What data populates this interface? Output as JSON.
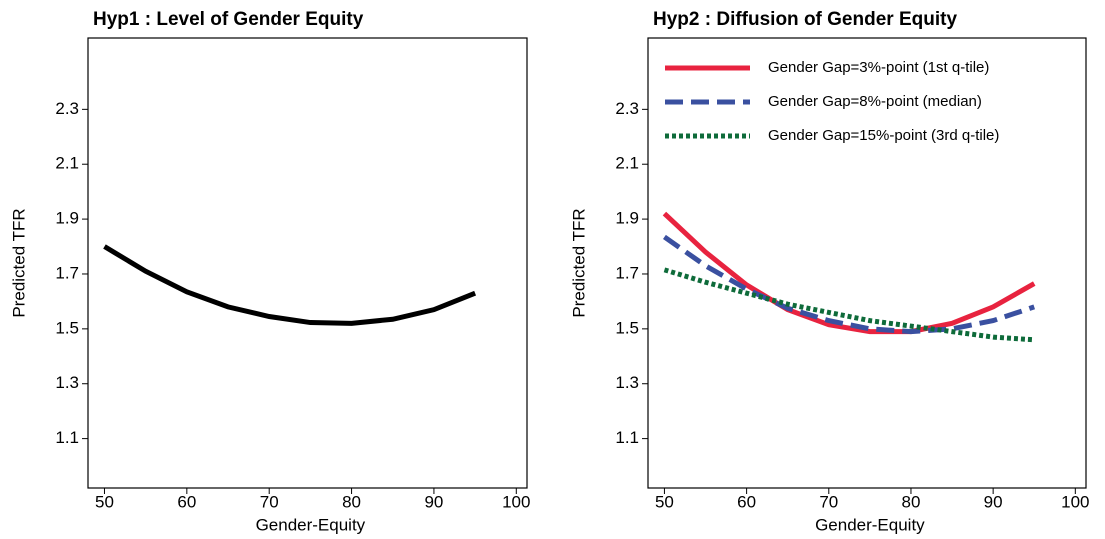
{
  "chart_data": [
    {
      "type": "line",
      "title": "Hyp1 : Level of Gender Equity",
      "x_label": "Gender-Equity",
      "y_label": "Predicted TFR",
      "x": [
        50,
        55,
        60,
        65,
        70,
        75,
        80,
        85,
        90,
        95
      ],
      "values": [
        1.8,
        1.71,
        1.635,
        1.58,
        1.545,
        1.523,
        1.52,
        1.535,
        1.57,
        1.63
      ],
      "color": "#000000",
      "xlim": [
        48,
        101.3
      ],
      "ylim": [
        0.92,
        2.56
      ],
      "xticks": [
        50,
        60,
        70,
        80,
        90,
        100
      ],
      "yticks": [
        1.1,
        1.3,
        1.5,
        1.7,
        1.9,
        2.1,
        2.3
      ]
    },
    {
      "type": "line",
      "title": "Hyp2 : Diffusion of Gender Equity",
      "x_label": "Gender-Equity",
      "y_label": "Predicted TFR",
      "x": [
        50,
        55,
        60,
        65,
        70,
        75,
        80,
        85,
        90,
        95
      ],
      "series": [
        {
          "name": "Gender Gap=3%-point (1st q-tile)",
          "color": "#e8233f",
          "style": "solid",
          "values": [
            1.92,
            1.78,
            1.66,
            1.57,
            1.515,
            1.49,
            1.49,
            1.52,
            1.58,
            1.665
          ]
        },
        {
          "name": "Gender Gap=8%-point (median)",
          "color": "#3a50a0",
          "style": "dashed",
          "values": [
            1.835,
            1.73,
            1.645,
            1.575,
            1.53,
            1.5,
            1.49,
            1.5,
            1.53,
            1.58
          ]
        },
        {
          "name": "Gender Gap=15%-point (3rd q-tile)",
          "color": "#0e6b3a",
          "style": "dotted",
          "values": [
            1.715,
            1.67,
            1.63,
            1.59,
            1.56,
            1.53,
            1.51,
            1.49,
            1.47,
            1.46
          ]
        }
      ],
      "xlim": [
        48,
        101.3
      ],
      "ylim": [
        0.92,
        2.56
      ],
      "xticks": [
        50,
        60,
        70,
        80,
        90,
        100
      ],
      "yticks": [
        1.1,
        1.3,
        1.5,
        1.7,
        1.9,
        2.1,
        2.3
      ],
      "legend": "upper left"
    }
  ]
}
